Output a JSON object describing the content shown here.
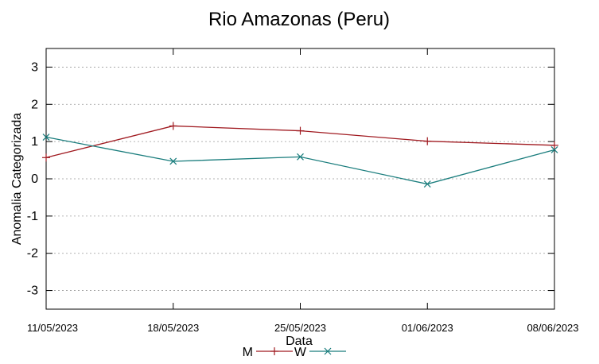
{
  "chart_data": {
    "type": "line",
    "title": "Rio Amazonas (Peru)",
    "xlabel": "Data",
    "ylabel": "Anomalia Categorizada",
    "categories": [
      "11/05/2023",
      "18/05/2023",
      "25/05/2023",
      "01/06/2023",
      "08/06/2023"
    ],
    "ylim": [
      -3.5,
      3.5
    ],
    "yticks": [
      3,
      2,
      1,
      0,
      -1,
      -2,
      -3
    ],
    "grid": true,
    "legend_position": "bottom-center",
    "series": [
      {
        "name": "M",
        "color": "#a01a20",
        "marker": "plus",
        "values": [
          0.57,
          1.42,
          1.29,
          1.01,
          0.9
        ]
      },
      {
        "name": "W",
        "color": "#1a7d7d",
        "marker": "x",
        "values": [
          1.12,
          0.47,
          0.59,
          -0.14,
          0.78
        ]
      }
    ]
  }
}
